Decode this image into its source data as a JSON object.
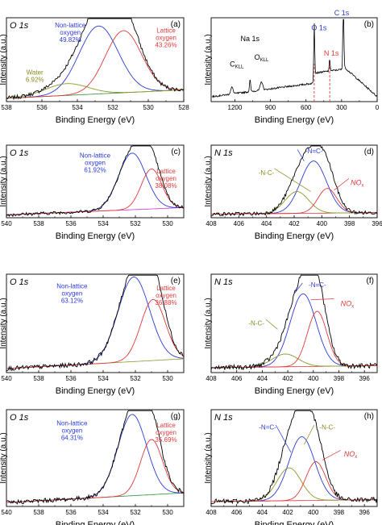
{
  "figure": {
    "ylabel": "Intensity (a.u.)",
    "xlabel": "Binding Energy (eV)"
  },
  "chart_data": [
    {
      "id": "a",
      "type": "line",
      "panel_label": "(a)",
      "core_level": "O 1s",
      "xlim": [
        538,
        528
      ],
      "x_ticks": [
        538,
        536,
        534,
        532,
        530,
        528
      ],
      "xlabel": "Binding Energy (eV)",
      "ylabel": "Intensity (a.u.)",
      "series": [
        {
          "name": "Non-lattice oxygen",
          "kind": "peak",
          "color": "#2a3ad8",
          "center": 532.8,
          "fwhm": 2.6,
          "height": 0.81
        },
        {
          "name": "Lattice oxygen",
          "kind": "peak",
          "color": "#e03a3a",
          "center": 531.4,
          "fwhm": 2.4,
          "height": 0.74
        },
        {
          "name": "Water",
          "kind": "peak",
          "color": "#8a9a2a",
          "center": 534.6,
          "fwhm": 2.8,
          "height": 0.14
        },
        {
          "kind": "background",
          "color": "#2e8b3a"
        }
      ],
      "annotations": [
        {
          "text": [
            "Non-lattice",
            "oxygen",
            "49.82%"
          ],
          "color": "#2a3ad8"
        },
        {
          "text": [
            "Lattice",
            "oxygen",
            "43.26%"
          ],
          "color": "#e03a3a"
        },
        {
          "text": [
            "Water",
            "6.92%"
          ],
          "color": "#8a8a20"
        }
      ]
    },
    {
      "id": "b",
      "type": "line",
      "panel_label": "(b)",
      "xlim": [
        1400,
        0
      ],
      "x_ticks": [
        1200,
        900,
        600,
        300,
        0
      ],
      "xlabel": "Binding Energy (eV)",
      "ylabel": "Intensity (a.u.)",
      "peaks": [
        {
          "label": "O KLL",
          "x": 975
        },
        {
          "label": "C KLL",
          "x": 1225
        },
        {
          "label": "Na 1s",
          "x": 1072
        },
        {
          "label": "O 1s",
          "x": 531
        },
        {
          "label": "N 1s",
          "x": 400
        },
        {
          "label": "C 1s",
          "x": 285
        }
      ],
      "markers": [
        531,
        400
      ]
    },
    {
      "id": "c",
      "type": "line",
      "panel_label": "(c)",
      "core_level": "O 1s",
      "xlim": [
        540,
        529
      ],
      "x_ticks": [
        540,
        538,
        536,
        534,
        532,
        530
      ],
      "xlabel": "Binding Energy (eV)",
      "ylabel": "Intensity (a.u.)",
      "series": [
        {
          "name": "Non-lattice oxygen",
          "kind": "peak",
          "color": "#2a3ad8",
          "center": 532.2,
          "fwhm": 2.0,
          "height": 0.78
        },
        {
          "name": "Lattice oxygen",
          "kind": "peak",
          "color": "#e03a3a",
          "center": 531.0,
          "fwhm": 1.5,
          "height": 0.55
        },
        {
          "kind": "background",
          "color": "#cc33cc"
        }
      ],
      "annotations": [
        {
          "text": [
            "Non-lattice",
            "oxygen",
            "61.92%"
          ],
          "color": "#2a3ad8"
        },
        {
          "text": [
            "Lattice",
            "oxygen",
            "38.08%"
          ],
          "color": "#e03a3a"
        }
      ]
    },
    {
      "id": "d",
      "type": "line",
      "panel_label": "(d)",
      "core_level": "N 1s",
      "xlim": [
        408,
        396
      ],
      "x_ticks": [
        408,
        406,
        404,
        402,
        400,
        398,
        396
      ],
      "xlabel": "Binding Energy (eV)",
      "ylabel": "Intensity (a.u.)",
      "series": [
        {
          "name": "-N=C-",
          "kind": "peak",
          "color": "#2a3ad8",
          "center": 400.6,
          "fwhm": 2.2,
          "height": 0.72
        },
        {
          "name": "-N-C-",
          "kind": "peak",
          "color": "#8a9a2a",
          "center": 401.8,
          "fwhm": 2.0,
          "height": 0.3
        },
        {
          "name": "NOx",
          "kind": "peak",
          "color": "#e03a3a",
          "center": 399.6,
          "fwhm": 1.6,
          "height": 0.34
        },
        {
          "kind": "background",
          "color": "#e03a3a"
        }
      ],
      "annotations": [
        {
          "text": [
            "-N=C-"
          ],
          "color": "#2a3ad8"
        },
        {
          "text": [
            "-N-C-"
          ],
          "color": "#8a8a20"
        },
        {
          "text": [
            "NOx"
          ],
          "color": "#e03a3a"
        }
      ]
    },
    {
      "id": "e",
      "type": "line",
      "panel_label": "(e)",
      "core_level": "O 1s",
      "xlim": [
        540,
        529
      ],
      "x_ticks": [
        540,
        538,
        536,
        534,
        532,
        530
      ],
      "xlabel": "Binding Energy (eV)",
      "ylabel": "Intensity (a.u.)",
      "series": [
        {
          "name": "Non-lattice oxygen",
          "kind": "peak",
          "color": "#2a3ad8",
          "center": 532.1,
          "fwhm": 2.3,
          "height": 0.86
        },
        {
          "name": "Lattice oxygen",
          "kind": "peak",
          "color": "#e03a3a",
          "center": 530.9,
          "fwhm": 1.8,
          "height": 0.62
        },
        {
          "kind": "background",
          "color": "#8a9a2a"
        }
      ],
      "annotations": [
        {
          "text": [
            "Non-lattice",
            "oxygen",
            "63.12%"
          ],
          "color": "#2a3ad8"
        },
        {
          "text": [
            "Lattice",
            "oxygen",
            "36.88%"
          ],
          "color": "#e03a3a"
        }
      ]
    },
    {
      "id": "f",
      "type": "line",
      "panel_label": "(f)",
      "core_level": "N 1s",
      "xlim": [
        408,
        395
      ],
      "x_ticks": [
        408,
        406,
        404,
        402,
        400,
        398,
        396
      ],
      "xlabel": "Binding Energy (eV)",
      "ylabel": "Intensity (a.u.)",
      "series": [
        {
          "name": "-N=C-",
          "kind": "peak",
          "color": "#2a3ad8",
          "center": 400.8,
          "fwhm": 2.4,
          "height": 0.74
        },
        {
          "name": "-N-C-",
          "kind": "peak",
          "color": "#8a9a2a",
          "center": 402.2,
          "fwhm": 2.4,
          "height": 0.13
        },
        {
          "name": "NOx",
          "kind": "peak",
          "color": "#e03a3a",
          "center": 399.7,
          "fwhm": 1.8,
          "height": 0.56
        },
        {
          "kind": "background",
          "color": "#e03a3a"
        }
      ],
      "annotations": [
        {
          "text": [
            "-N=C-"
          ],
          "color": "#2a3ad8"
        },
        {
          "text": [
            "-N-C-"
          ],
          "color": "#8a8a20"
        },
        {
          "text": [
            "NOx"
          ],
          "color": "#e03a3a"
        }
      ]
    },
    {
      "id": "g",
      "type": "line",
      "panel_label": "(g)",
      "core_level": "O 1s",
      "xlim": [
        540,
        529
      ],
      "x_ticks": [
        540,
        538,
        536,
        534,
        532,
        530
      ],
      "xlabel": "Binding Energy (eV)",
      "ylabel": "Intensity (a.u.)",
      "series": [
        {
          "name": "Non-lattice oxygen",
          "kind": "peak",
          "color": "#2a3ad8",
          "center": 532.2,
          "fwhm": 2.1,
          "height": 0.84
        },
        {
          "name": "Lattice oxygen",
          "kind": "peak",
          "color": "#e03a3a",
          "center": 531.0,
          "fwhm": 1.6,
          "height": 0.57
        },
        {
          "kind": "background",
          "color": "#2e8b3a"
        }
      ],
      "annotations": [
        {
          "text": [
            "Non-lattice",
            "oxygen",
            "64.31%"
          ],
          "color": "#2a3ad8"
        },
        {
          "text": [
            "Lattice",
            "oxygen",
            "35.69%"
          ],
          "color": "#e03a3a"
        }
      ]
    },
    {
      "id": "h",
      "type": "line",
      "panel_label": "(h)",
      "core_level": "N 1s",
      "xlim": [
        408,
        395
      ],
      "x_ticks": [
        408,
        406,
        404,
        402,
        400,
        398,
        396
      ],
      "xlabel": "Binding Energy (eV)",
      "ylabel": "Intensity (a.u.)",
      "series": [
        {
          "name": "-N=C-",
          "kind": "peak",
          "color": "#2a3ad8",
          "center": 400.9,
          "fwhm": 2.4,
          "height": 0.66
        },
        {
          "name": "-N-C-",
          "kind": "peak",
          "color": "#8a9a2a",
          "center": 401.9,
          "fwhm": 2.2,
          "height": 0.34
        },
        {
          "name": "NOx",
          "kind": "peak",
          "color": "#e03a3a",
          "center": 399.8,
          "fwhm": 1.8,
          "height": 0.4
        },
        {
          "kind": "background",
          "color": "#e03a3a"
        }
      ],
      "annotations": [
        {
          "text": [
            "-N=C-"
          ],
          "color": "#2a3ad8"
        },
        {
          "text": [
            "-N-C-"
          ],
          "color": "#8a8a20"
        },
        {
          "text": [
            "NOx"
          ],
          "color": "#e03a3a"
        }
      ]
    }
  ]
}
